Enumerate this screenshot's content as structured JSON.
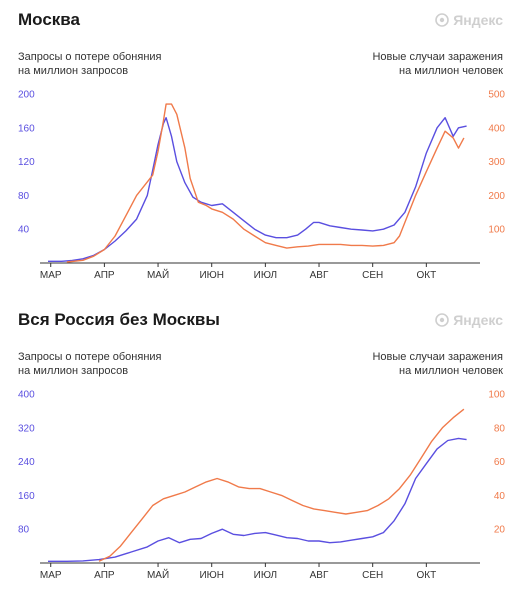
{
  "chart_data": [
    {
      "type": "line",
      "title": "Москва",
      "logo": "Яндекс",
      "ylabel_left": "Запросы о потере обоняния\nна миллион запросов",
      "ylabel_right": "Новые случаи заражения\nна миллион человек",
      "left_ticks": [
        "40",
        "80",
        "120",
        "160",
        "200"
      ],
      "right_ticks": [
        "100",
        "200",
        "300",
        "400",
        "500"
      ],
      "ylim_left": [
        0,
        200
      ],
      "ylim_right": [
        0,
        500
      ],
      "x_ticks": [
        "МАР",
        "АПР",
        "МАЙ",
        "ИЮН",
        "ИЮЛ",
        "АВГ",
        "СЕН",
        "ОКТ"
      ],
      "xlim": [
        -0.2,
        8.0
      ],
      "colors": {
        "left": "#5a4fe0",
        "right": "#f07a4a",
        "axis": "#333333"
      },
      "series": [
        {
          "axis": "left",
          "points": [
            [
              -0.05,
              2
            ],
            [
              0.2,
              2
            ],
            [
              0.4,
              3
            ],
            [
              0.6,
              5
            ],
            [
              0.8,
              9
            ],
            [
              1.0,
              16
            ],
            [
              1.2,
              26
            ],
            [
              1.4,
              38
            ],
            [
              1.6,
              52
            ],
            [
              1.8,
              80
            ],
            [
              1.9,
              110
            ],
            [
              2.0,
              140
            ],
            [
              2.1,
              165
            ],
            [
              2.15,
              172
            ],
            [
              2.25,
              150
            ],
            [
              2.35,
              120
            ],
            [
              2.5,
              95
            ],
            [
              2.65,
              78
            ],
            [
              2.8,
              72
            ],
            [
              3.0,
              68
            ],
            [
              3.2,
              70
            ],
            [
              3.4,
              60
            ],
            [
              3.6,
              50
            ],
            [
              3.8,
              40
            ],
            [
              4.0,
              33
            ],
            [
              4.2,
              30
            ],
            [
              4.4,
              30
            ],
            [
              4.6,
              33
            ],
            [
              4.75,
              40
            ],
            [
              4.9,
              48
            ],
            [
              5.0,
              48
            ],
            [
              5.2,
              44
            ],
            [
              5.4,
              42
            ],
            [
              5.6,
              40
            ],
            [
              5.8,
              39
            ],
            [
              6.0,
              38
            ],
            [
              6.2,
              40
            ],
            [
              6.4,
              45
            ],
            [
              6.6,
              60
            ],
            [
              6.8,
              90
            ],
            [
              7.0,
              130
            ],
            [
              7.2,
              160
            ],
            [
              7.35,
              172
            ],
            [
              7.5,
              150
            ],
            [
              7.6,
              160
            ],
            [
              7.75,
              162
            ]
          ]
        },
        {
          "axis": "right",
          "points": [
            [
              0.3,
              3
            ],
            [
              0.6,
              8
            ],
            [
              0.8,
              20
            ],
            [
              1.0,
              40
            ],
            [
              1.2,
              80
            ],
            [
              1.4,
              140
            ],
            [
              1.6,
              200
            ],
            [
              1.8,
              240
            ],
            [
              1.9,
              260
            ],
            [
              2.0,
              330
            ],
            [
              2.1,
              420
            ],
            [
              2.15,
              470
            ],
            [
              2.25,
              470
            ],
            [
              2.35,
              440
            ],
            [
              2.5,
              340
            ],
            [
              2.6,
              250
            ],
            [
              2.75,
              180
            ],
            [
              2.9,
              170
            ],
            [
              3.0,
              160
            ],
            [
              3.2,
              150
            ],
            [
              3.4,
              130
            ],
            [
              3.6,
              100
            ],
            [
              3.8,
              80
            ],
            [
              4.0,
              60
            ],
            [
              4.2,
              52
            ],
            [
              4.4,
              44
            ],
            [
              4.6,
              48
            ],
            [
              4.8,
              50
            ],
            [
              5.0,
              55
            ],
            [
              5.4,
              55
            ],
            [
              5.6,
              52
            ],
            [
              5.8,
              52
            ],
            [
              6.0,
              50
            ],
            [
              6.2,
              52
            ],
            [
              6.4,
              60
            ],
            [
              6.5,
              80
            ],
            [
              6.6,
              120
            ],
            [
              6.8,
              200
            ],
            [
              7.0,
              270
            ],
            [
              7.2,
              340
            ],
            [
              7.35,
              390
            ],
            [
              7.5,
              370
            ],
            [
              7.6,
              340
            ],
            [
              7.7,
              370
            ]
          ]
        }
      ]
    },
    {
      "type": "line",
      "title": "Вся Россия без Москвы",
      "logo": "Яндекс",
      "ylabel_left": "Запросы о потере обоняния\nна миллион запросов",
      "ylabel_right": "Новые случаи заражения\nна миллион человек",
      "left_ticks": [
        "80",
        "160",
        "240",
        "320",
        "400"
      ],
      "right_ticks": [
        "20",
        "40",
        "60",
        "80",
        "100"
      ],
      "ylim_left": [
        0,
        400
      ],
      "ylim_right": [
        0,
        100
      ],
      "x_ticks": [
        "МАР",
        "АПР",
        "МАЙ",
        "ИЮН",
        "ИЮЛ",
        "АВГ",
        "СЕН",
        "ОКТ"
      ],
      "xlim": [
        -0.2,
        8.0
      ],
      "colors": {
        "left": "#5a4fe0",
        "right": "#f07a4a",
        "axis": "#333333"
      },
      "series": [
        {
          "axis": "left",
          "points": [
            [
              -0.05,
              4
            ],
            [
              0.3,
              4
            ],
            [
              0.6,
              5
            ],
            [
              0.9,
              8
            ],
            [
              1.2,
              14
            ],
            [
              1.5,
              26
            ],
            [
              1.8,
              38
            ],
            [
              2.0,
              52
            ],
            [
              2.2,
              60
            ],
            [
              2.4,
              48
            ],
            [
              2.6,
              56
            ],
            [
              2.8,
              58
            ],
            [
              3.0,
              70
            ],
            [
              3.2,
              80
            ],
            [
              3.4,
              68
            ],
            [
              3.6,
              65
            ],
            [
              3.8,
              70
            ],
            [
              4.0,
              72
            ],
            [
              4.2,
              66
            ],
            [
              4.4,
              60
            ],
            [
              4.6,
              58
            ],
            [
              4.8,
              52
            ],
            [
              5.0,
              52
            ],
            [
              5.2,
              48
            ],
            [
              5.4,
              50
            ],
            [
              5.6,
              54
            ],
            [
              5.8,
              58
            ],
            [
              6.0,
              62
            ],
            [
              6.2,
              72
            ],
            [
              6.4,
              100
            ],
            [
              6.6,
              140
            ],
            [
              6.8,
              200
            ],
            [
              7.0,
              235
            ],
            [
              7.2,
              270
            ],
            [
              7.4,
              290
            ],
            [
              7.6,
              295
            ],
            [
              7.75,
              292
            ]
          ]
        },
        {
          "axis": "right",
          "points": [
            [
              0.9,
              1
            ],
            [
              1.1,
              4
            ],
            [
              1.3,
              10
            ],
            [
              1.5,
              18
            ],
            [
              1.7,
              26
            ],
            [
              1.9,
              34
            ],
            [
              2.1,
              38
            ],
            [
              2.3,
              40
            ],
            [
              2.5,
              42
            ],
            [
              2.7,
              45
            ],
            [
              2.9,
              48
            ],
            [
              3.1,
              50
            ],
            [
              3.3,
              48
            ],
            [
              3.5,
              45
            ],
            [
              3.7,
              44
            ],
            [
              3.9,
              44
            ],
            [
              4.1,
              42
            ],
            [
              4.3,
              40
            ],
            [
              4.5,
              37
            ],
            [
              4.7,
              34
            ],
            [
              4.9,
              32
            ],
            [
              5.1,
              31
            ],
            [
              5.3,
              30
            ],
            [
              5.5,
              29
            ],
            [
              5.7,
              30
            ],
            [
              5.9,
              31
            ],
            [
              6.1,
              34
            ],
            [
              6.3,
              38
            ],
            [
              6.5,
              44
            ],
            [
              6.7,
              52
            ],
            [
              6.9,
              62
            ],
            [
              7.1,
              72
            ],
            [
              7.3,
              80
            ],
            [
              7.5,
              86
            ],
            [
              7.7,
              91
            ]
          ]
        }
      ]
    }
  ]
}
